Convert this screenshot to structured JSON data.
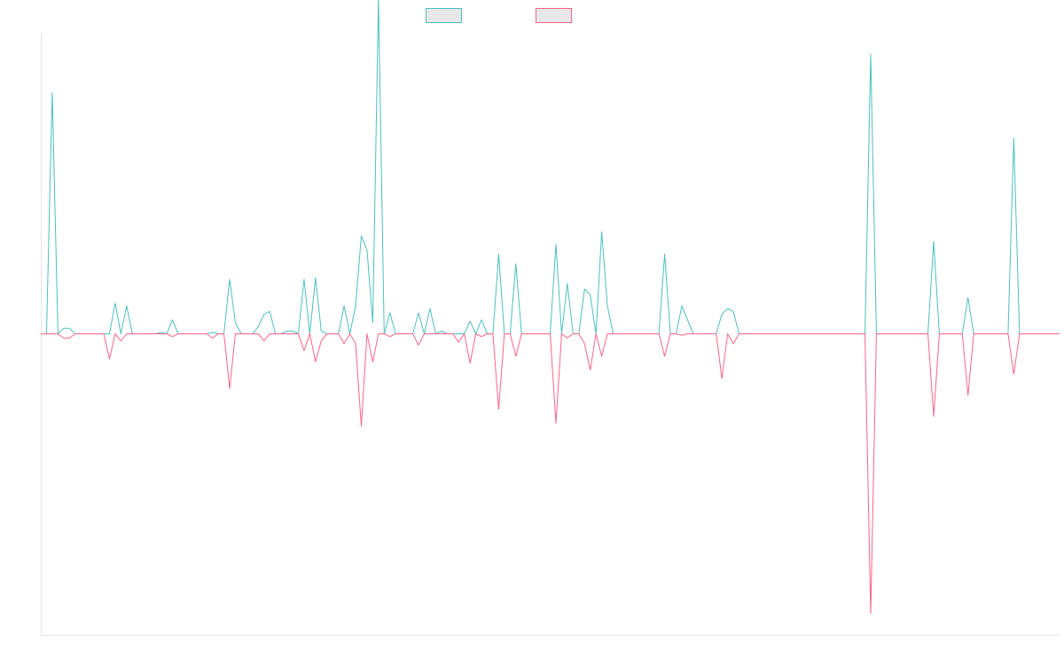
{
  "chart_data": {
    "type": "line",
    "title": "",
    "xlabel": "",
    "ylabel": "",
    "x_count": 179,
    "ylim": [
      -10.77,
      10.77
    ],
    "grid": false,
    "legend": "top-center",
    "series": [
      {
        "name": "",
        "color": "#4bc0c0",
        "points": [
          [
            2,
            8.63
          ],
          [
            4,
            0.2
          ],
          [
            5,
            0.2
          ],
          [
            13,
            1.1
          ],
          [
            15,
            1.0
          ],
          [
            21,
            0.05
          ],
          [
            23,
            0.5
          ],
          [
            30,
            0.05
          ],
          [
            33,
            1.95
          ],
          [
            34,
            0.4
          ],
          [
            38,
            0.25
          ],
          [
            39,
            0.7
          ],
          [
            40,
            0.8
          ],
          [
            43,
            0.1
          ],
          [
            44,
            0.1
          ],
          [
            46,
            1.95
          ],
          [
            48,
            2.0
          ],
          [
            49,
            0.1
          ],
          [
            53,
            1.0
          ],
          [
            55,
            1.0
          ],
          [
            56,
            3.5
          ],
          [
            57,
            3.0
          ],
          [
            58,
            0.4
          ],
          [
            59,
            12.0
          ],
          [
            61,
            0.75
          ],
          [
            66,
            0.75
          ],
          [
            68,
            0.9
          ],
          [
            70,
            0.1
          ],
          [
            75,
            0.45
          ],
          [
            77,
            0.5
          ],
          [
            80,
            2.85
          ],
          [
            83,
            2.5
          ],
          [
            90,
            3.2
          ],
          [
            92,
            1.8
          ],
          [
            95,
            1.6
          ],
          [
            96,
            1.4
          ],
          [
            98,
            3.65
          ],
          [
            99,
            1.0
          ],
          [
            109,
            2.85
          ],
          [
            112,
            1.0
          ],
          [
            113,
            0.5
          ],
          [
            119,
            0.7
          ],
          [
            120,
            0.9
          ],
          [
            121,
            0.8
          ],
          [
            145,
            10.0
          ],
          [
            156,
            3.3
          ],
          [
            162,
            1.3
          ],
          [
            170,
            7.0
          ]
        ]
      },
      {
        "name": "",
        "color": "#ff6384",
        "points": [
          [
            4,
            -0.15
          ],
          [
            5,
            -0.15
          ],
          [
            12,
            -0.9
          ],
          [
            14,
            -0.25
          ],
          [
            23,
            -0.1
          ],
          [
            30,
            -0.15
          ],
          [
            33,
            -1.95
          ],
          [
            39,
            -0.25
          ],
          [
            46,
            -0.6
          ],
          [
            48,
            -1.0
          ],
          [
            49,
            -0.25
          ],
          [
            53,
            -0.35
          ],
          [
            55,
            -0.35
          ],
          [
            56,
            -3.3
          ],
          [
            58,
            -1.0
          ],
          [
            61,
            -0.1
          ],
          [
            66,
            -0.4
          ],
          [
            73,
            -0.3
          ],
          [
            75,
            -1.05
          ],
          [
            77,
            -0.1
          ],
          [
            80,
            -2.7
          ],
          [
            83,
            -0.8
          ],
          [
            90,
            -3.2
          ],
          [
            92,
            -0.15
          ],
          [
            95,
            -0.35
          ],
          [
            96,
            -1.3
          ],
          [
            98,
            -0.8
          ],
          [
            109,
            -0.8
          ],
          [
            112,
            -0.05
          ],
          [
            119,
            -1.6
          ],
          [
            121,
            -0.35
          ],
          [
            145,
            -10.0
          ],
          [
            156,
            -2.95
          ],
          [
            162,
            -2.2
          ],
          [
            170,
            -1.45
          ]
        ]
      }
    ]
  }
}
